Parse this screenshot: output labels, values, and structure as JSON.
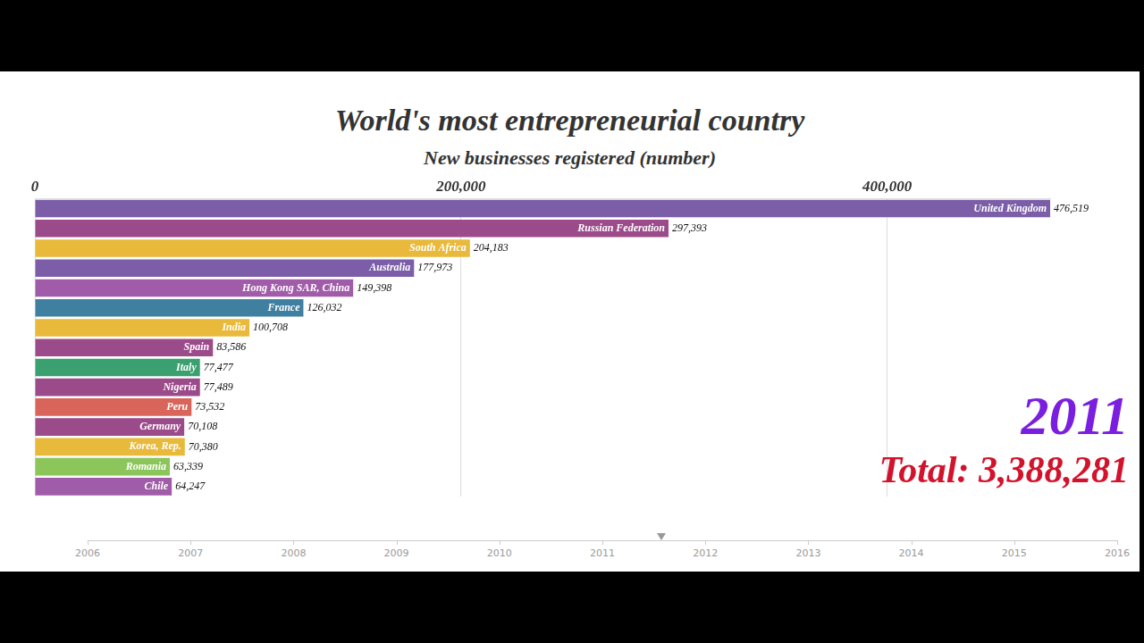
{
  "chart_data": {
    "type": "bar",
    "orientation": "horizontal",
    "title": "World's most entrepreneurial country",
    "subtitle": "New businesses registered (number)",
    "categories": [
      "United Kingdom",
      "Russian Federation",
      "South Africa",
      "Australia",
      "Hong Kong SAR, China",
      "France",
      "India",
      "Spain",
      "Italy",
      "Nigeria",
      "Peru",
      "Germany",
      "Korea, Rep.",
      "Romania",
      "Chile"
    ],
    "values": [
      476519,
      297393,
      204183,
      177973,
      149398,
      126032,
      100708,
      83586,
      77477,
      77489,
      73532,
      70108,
      70380,
      63339,
      64247
    ],
    "value_labels": [
      "476,519",
      "297,393",
      "204,183",
      "177,973",
      "149,398",
      "126,032",
      "100,708",
      "83,586",
      "77,477",
      "77,489",
      "73,532",
      "70,108",
      "70,380",
      "63,339",
      "64,247"
    ],
    "colors": [
      "#7b5ea7",
      "#9b4a8a",
      "#e8b93a",
      "#7b5ea7",
      "#a05ca8",
      "#3f7fa0",
      "#e8b93a",
      "#9b4a8a",
      "#3aa070",
      "#9b4a8a",
      "#d9655a",
      "#9b4a8a",
      "#e8b93a",
      "#8cc65a",
      "#a05ca8"
    ],
    "xlim": [
      0,
      476519
    ],
    "xticks": [
      0,
      {
        "value": 200000,
        "label": "200,000"
      },
      {
        "value": 400000,
        "label": "400,000"
      }
    ],
    "grid": true,
    "data_labels": true,
    "tick_labels": "x",
    "annotations": [
      "2011",
      "Total: 3,388,281"
    ],
    "timeline": [
      2006,
      2007,
      2008,
      2009,
      2010,
      2011,
      2012,
      2013,
      2014,
      2015,
      2016
    ],
    "timeline_position": 2011.57
  }
}
